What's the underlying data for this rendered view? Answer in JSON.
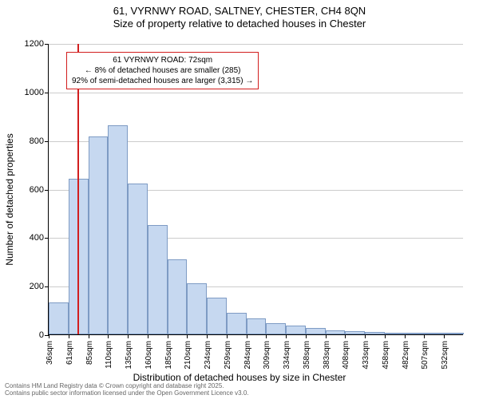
{
  "title": {
    "line1": "61, VYRNWY ROAD, SALTNEY, CHESTER, CH4 8QN",
    "line2": "Size of property relative to detached houses in Chester"
  },
  "chart": {
    "type": "histogram",
    "y_axis": {
      "title": "Number of detached properties",
      "min": 0,
      "max": 1200,
      "step": 200,
      "grid_color": "#cccccc",
      "label_fontsize": 11
    },
    "x_axis": {
      "title": "Distribution of detached houses by size in Chester",
      "labels": [
        "36sqm",
        "61sqm",
        "85sqm",
        "110sqm",
        "135sqm",
        "160sqm",
        "185sqm",
        "210sqm",
        "234sqm",
        "259sqm",
        "284sqm",
        "309sqm",
        "334sqm",
        "358sqm",
        "383sqm",
        "408sqm",
        "433sqm",
        "458sqm",
        "482sqm",
        "507sqm",
        "532sqm"
      ],
      "label_fontsize": 10
    },
    "bars": {
      "values": [
        130,
        640,
        815,
        860,
        620,
        450,
        310,
        210,
        150,
        90,
        65,
        45,
        35,
        25,
        18,
        14,
        10,
        8,
        6,
        4,
        3
      ],
      "fill_color": "#c6d8f0",
      "border_color": "#7e9bc4"
    },
    "reference_line": {
      "x_value_sqm": 72,
      "x_range_start": 36,
      "x_range_end": 557,
      "color": "#d21e1e"
    },
    "callout": {
      "line1": "61 VYRNWY ROAD: 72sqm",
      "line2": "← 8% of detached houses are smaller (285)",
      "line3": "92% of semi-detached houses are larger (3,315) →",
      "border_color": "#d21e1e",
      "fontsize": 10
    }
  },
  "footer": {
    "line1": "Contains HM Land Registry data © Crown copyright and database right 2025.",
    "line2": "Contains public sector information licensed under the Open Government Licence v3.0.",
    "color": "#666666",
    "fontsize": 8
  }
}
